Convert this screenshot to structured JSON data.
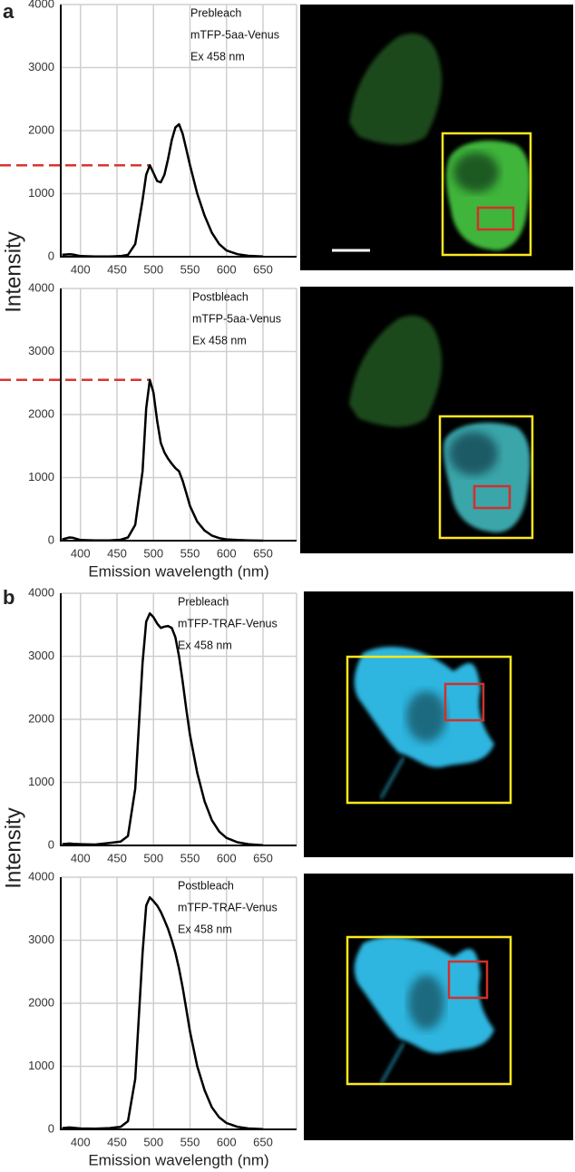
{
  "figure": {
    "panels": [
      {
        "label": "a",
        "y_label": "Intensity",
        "x_label": "Emission wavelength (nm)"
      },
      {
        "label": "b",
        "y_label": "Intensity",
        "x_label": "Emission wavelength (nm)"
      }
    ]
  },
  "chart_data": [
    {
      "type": "line",
      "annotations": [
        "Prebleach",
        "mTFP-5aa-Venus",
        "Ex 458 nm"
      ],
      "x": [
        375,
        385,
        390,
        400,
        420,
        440,
        455,
        465,
        475,
        485,
        490,
        495,
        500,
        505,
        510,
        515,
        520,
        525,
        530,
        535,
        540,
        545,
        550,
        560,
        570,
        580,
        590,
        600,
        615,
        630,
        650
      ],
      "values": [
        30,
        40,
        35,
        10,
        5,
        5,
        10,
        30,
        200,
        900,
        1300,
        1450,
        1330,
        1200,
        1180,
        1300,
        1550,
        1850,
        2050,
        2100,
        1950,
        1700,
        1450,
        1000,
        650,
        380,
        200,
        100,
        40,
        15,
        5
      ],
      "color": "#000000",
      "xlim": [
        373,
        696
      ],
      "ylim": [
        0,
        4000
      ],
      "xticks": [
        400,
        450,
        500,
        550,
        600,
        650
      ],
      "yticks": [
        0,
        1000,
        2000,
        3000,
        4000
      ],
      "grid": true,
      "reference_line": {
        "y": 1450,
        "x": 495,
        "color": "#d9352f"
      }
    },
    {
      "type": "line",
      "annotations": [
        "Postbleach",
        "mTFP-5aa-Venus",
        "Ex 458 nm"
      ],
      "x": [
        375,
        385,
        390,
        400,
        420,
        440,
        455,
        465,
        475,
        485,
        490,
        495,
        500,
        505,
        510,
        515,
        520,
        525,
        530,
        535,
        540,
        545,
        550,
        560,
        570,
        580,
        590,
        600,
        615,
        630,
        650
      ],
      "values": [
        20,
        50,
        45,
        10,
        5,
        5,
        15,
        50,
        250,
        1100,
        2100,
        2550,
        2350,
        1900,
        1550,
        1400,
        1300,
        1220,
        1150,
        1100,
        950,
        750,
        550,
        300,
        160,
        80,
        40,
        20,
        10,
        5,
        0
      ],
      "color": "#000000",
      "xlim": [
        373,
        696
      ],
      "ylim": [
        0,
        4000
      ],
      "xticks": [
        400,
        450,
        500,
        550,
        600,
        650
      ],
      "yticks": [
        0,
        1000,
        2000,
        3000,
        4000
      ],
      "grid": true,
      "reference_line": {
        "y": 2550,
        "x": 495,
        "color": "#d9352f"
      }
    },
    {
      "type": "line",
      "annotations": [
        "Prebleach",
        "mTFP-TRAF-Venus",
        "Ex 458 nm"
      ],
      "x": [
        375,
        385,
        390,
        400,
        420,
        440,
        455,
        465,
        475,
        485,
        490,
        495,
        500,
        505,
        510,
        515,
        520,
        525,
        530,
        535,
        540,
        545,
        550,
        560,
        570,
        580,
        590,
        600,
        615,
        630,
        650
      ],
      "values": [
        20,
        30,
        25,
        20,
        15,
        40,
        60,
        150,
        900,
        2900,
        3550,
        3680,
        3620,
        3520,
        3450,
        3470,
        3480,
        3450,
        3300,
        3000,
        2600,
        2150,
        1750,
        1150,
        700,
        400,
        220,
        120,
        50,
        20,
        5
      ],
      "color": "#000000",
      "xlim": [
        373,
        696
      ],
      "ylim": [
        0,
        4000
      ],
      "xticks": [
        400,
        450,
        500,
        550,
        600,
        650
      ],
      "yticks": [
        0,
        1000,
        2000,
        3000,
        4000
      ],
      "grid": true
    },
    {
      "type": "line",
      "annotations": [
        "Postbleach",
        "mTFP-TRAF-Venus",
        "Ex 458 nm"
      ],
      "x": [
        375,
        385,
        390,
        400,
        420,
        440,
        455,
        465,
        475,
        485,
        490,
        495,
        500,
        505,
        510,
        515,
        520,
        525,
        530,
        535,
        540,
        545,
        550,
        560,
        570,
        580,
        590,
        600,
        615,
        630,
        650
      ],
      "values": [
        20,
        30,
        25,
        15,
        10,
        20,
        40,
        130,
        800,
        2800,
        3550,
        3680,
        3620,
        3550,
        3450,
        3320,
        3180,
        3000,
        2800,
        2550,
        2250,
        1900,
        1550,
        1000,
        620,
        350,
        190,
        100,
        40,
        15,
        5
      ],
      "color": "#000000",
      "xlim": [
        373,
        696
      ],
      "ylim": [
        0,
        4000
      ],
      "xticks": [
        400,
        450,
        500,
        550,
        600,
        650
      ],
      "yticks": [
        0,
        1000,
        2000,
        3000,
        4000
      ],
      "grid": true
    }
  ]
}
